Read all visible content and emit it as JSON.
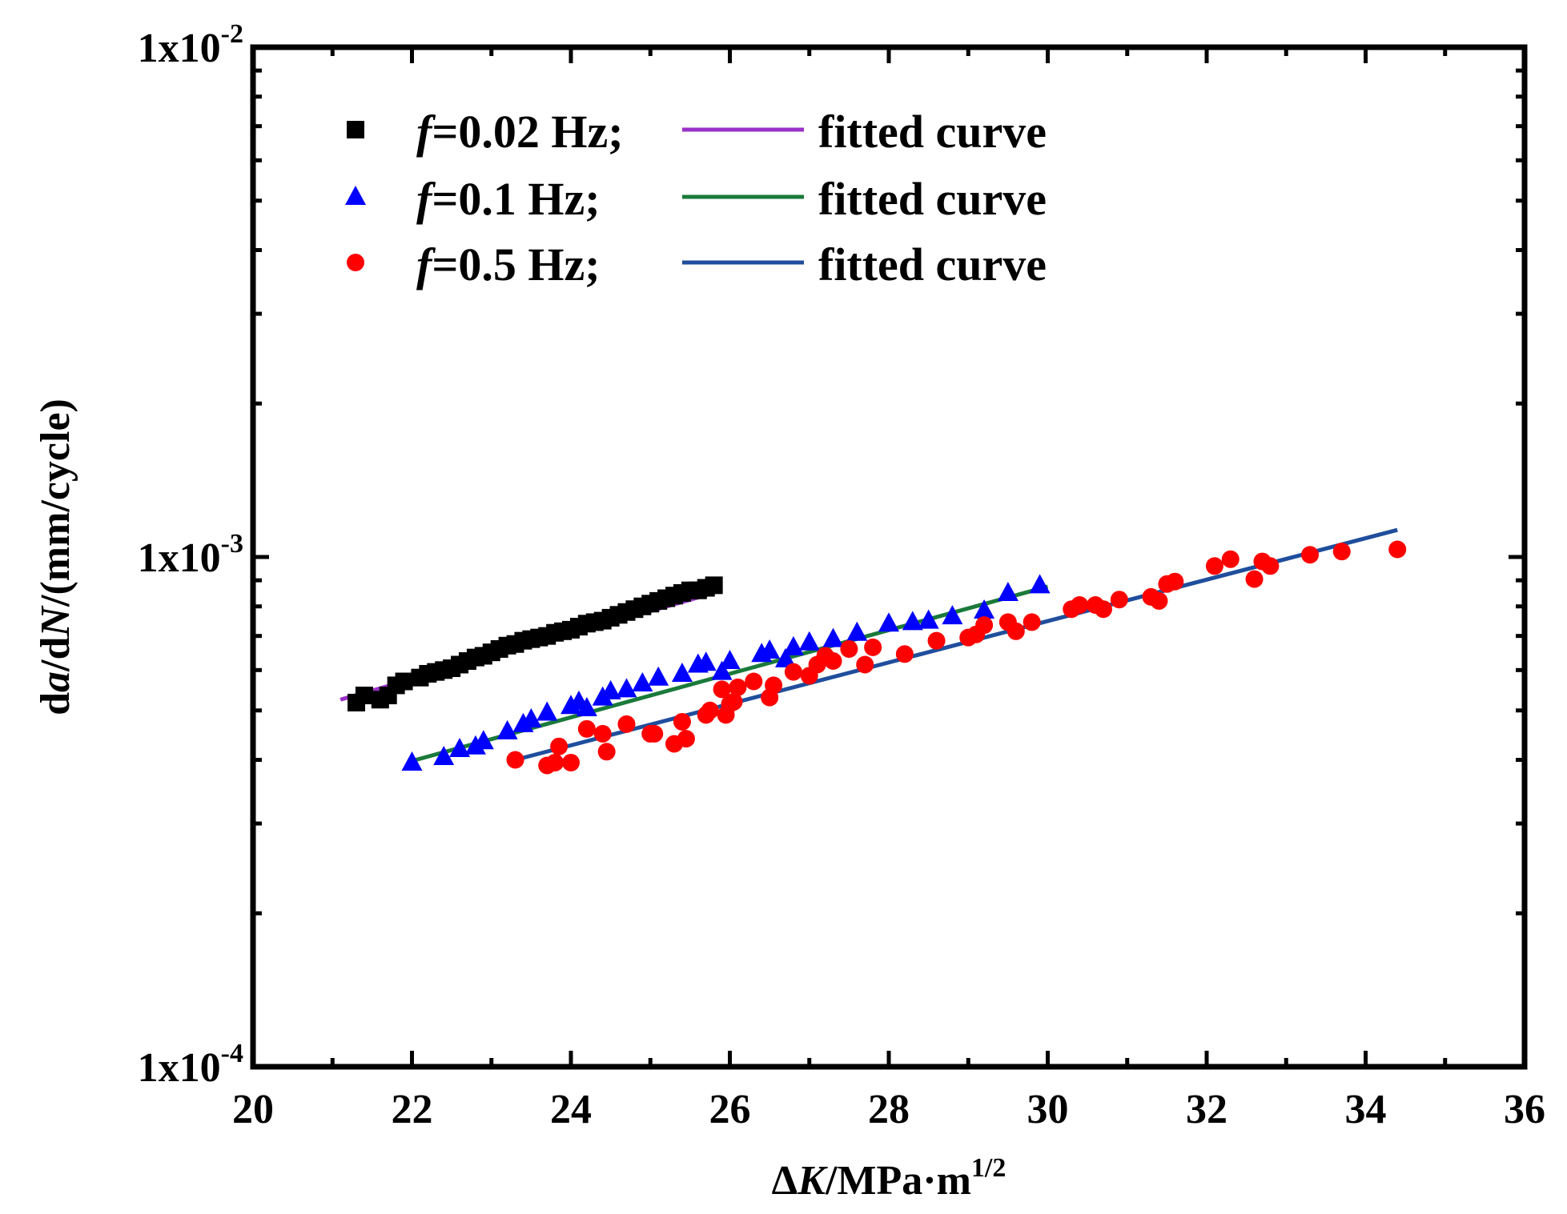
{
  "chart_data": {
    "type": "scatter",
    "x_scale": "linear",
    "y_scale": "log",
    "xlim": [
      20,
      36
    ],
    "ylim": [
      0.0001,
      0.01
    ],
    "x_ticks": [
      {
        "value": 20,
        "label": "20"
      },
      {
        "value": 22,
        "label": "22"
      },
      {
        "value": 24,
        "label": "24"
      },
      {
        "value": 26,
        "label": "26"
      },
      {
        "value": 28,
        "label": "28"
      },
      {
        "value": 30,
        "label": "30"
      },
      {
        "value": 32,
        "label": "32"
      },
      {
        "value": 34,
        "label": "34"
      },
      {
        "value": 36,
        "label": "36"
      }
    ],
    "y_ticks": [
      {
        "value": 0.0001,
        "mantissa": "1x10",
        "exponent": "-4"
      },
      {
        "value": 0.001,
        "mantissa": "1x10",
        "exponent": "-3"
      },
      {
        "value": 0.01,
        "mantissa": "1x10",
        "exponent": "-2"
      }
    ],
    "xlabel": {
      "prefix": "Δ",
      "var": "K",
      "unit": "/MPa·m",
      "sup": "1/2"
    },
    "ylabel": {
      "p1": "d",
      "v1": "a",
      "p2": "/d",
      "v2": "N",
      "p3": "/(mm/cycle)"
    },
    "grid": false,
    "legend_position": "top-left",
    "series": [
      {
        "name": "=0.02 Hz;",
        "name_prefix": "f",
        "marker": "square",
        "color": "#000000",
        "fit_name": "fitted curve",
        "fit_color": "#9b30c8",
        "fit": {
          "x": [
            21.1,
            25.8
          ],
          "y": [
            0.000525,
            0.00085
          ]
        },
        "x": [
          21.3,
          21.4,
          21.6,
          21.7,
          21.8,
          21.9,
          22.1,
          22.2,
          22.3,
          22.4,
          22.5,
          22.6,
          22.7,
          22.8,
          22.9,
          23.0,
          23.1,
          23.2,
          23.3,
          23.4,
          23.5,
          23.6,
          23.7,
          23.8,
          23.9,
          24.0,
          24.1,
          24.2,
          24.3,
          24.4,
          24.5,
          24.6,
          24.7,
          24.8,
          24.9,
          25.0,
          25.1,
          25.2,
          25.3,
          25.4,
          25.5,
          25.6,
          25.7,
          25.8
        ],
        "y": [
          0.000518,
          0.000535,
          0.000525,
          0.000535,
          0.00056,
          0.00057,
          0.00058,
          0.00059,
          0.000595,
          0.0006,
          0.000605,
          0.000615,
          0.000625,
          0.000635,
          0.00064,
          0.00065,
          0.00066,
          0.00067,
          0.000675,
          0.000685,
          0.00069,
          0.000695,
          0.0007,
          0.00071,
          0.000715,
          0.00072,
          0.00073,
          0.00074,
          0.000745,
          0.00075,
          0.00076,
          0.00077,
          0.00078,
          0.00079,
          0.0008,
          0.00081,
          0.00082,
          0.00083,
          0.00084,
          0.00085,
          0.00086,
          0.00086,
          0.00087,
          0.00088
        ]
      },
      {
        "name": "=0.1 Hz;",
        "name_prefix": "f",
        "marker": "triangle",
        "color": "#0000ff",
        "fit_name": "fitted curve",
        "fit_color": "#1a7a3a",
        "fit": {
          "x": [
            22.0,
            30.0
          ],
          "y": [
            0.000398,
            0.000875
          ]
        },
        "x": [
          22.0,
          22.4,
          22.6,
          22.8,
          22.9,
          23.2,
          23.4,
          23.5,
          23.7,
          24.0,
          24.1,
          24.2,
          24.4,
          24.5,
          24.7,
          24.9,
          25.1,
          25.4,
          25.6,
          25.7,
          25.9,
          26.0,
          26.4,
          26.5,
          26.7,
          26.8,
          27.0,
          27.3,
          27.6,
          28.0,
          28.3,
          28.5,
          28.8,
          29.2,
          29.5,
          29.9
        ],
        "y": [
          0.000395,
          0.000405,
          0.00042,
          0.000425,
          0.000435,
          0.000455,
          0.00047,
          0.00048,
          0.000495,
          0.00051,
          0.00052,
          0.000505,
          0.00053,
          0.000545,
          0.00055,
          0.000565,
          0.00058,
          0.00059,
          0.000615,
          0.00062,
          0.000595,
          0.000625,
          0.000645,
          0.000655,
          0.00063,
          0.000665,
          0.00068,
          0.00069,
          0.00071,
          0.00074,
          0.000745,
          0.00075,
          0.000765,
          0.000785,
          0.00085,
          0.00088
        ]
      },
      {
        "name": "=0.5 Hz;",
        "name_prefix": "f",
        "marker": "circle",
        "color": "#ff0000",
        "fit_name": "fitted curve",
        "fit_color": "#1f4e9c",
        "fit": {
          "x": [
            23.3,
            34.4
          ],
          "y": [
            0.0004,
            0.00113
          ]
        },
        "x": [
          23.3,
          23.7,
          23.8,
          23.85,
          24.0,
          24.2,
          24.4,
          24.45,
          24.7,
          25.0,
          25.05,
          25.3,
          25.4,
          25.45,
          25.7,
          25.75,
          25.9,
          25.95,
          26.0,
          26.05,
          26.1,
          26.3,
          26.5,
          26.55,
          26.8,
          27.0,
          27.1,
          27.2,
          27.3,
          27.5,
          27.7,
          27.8,
          28.2,
          28.6,
          29.0,
          29.1,
          29.2,
          29.5,
          29.6,
          29.8,
          30.3,
          30.4,
          30.6,
          30.7,
          30.9,
          31.3,
          31.4,
          31.5,
          31.6,
          32.1,
          32.3,
          32.6,
          32.7,
          32.8,
          33.3,
          33.7,
          34.4
        ],
        "y": [
          0.0004,
          0.00039,
          0.000395,
          0.000425,
          0.000395,
          0.00046,
          0.00045,
          0.000415,
          0.00047,
          0.00045,
          0.00045,
          0.00043,
          0.000475,
          0.00044,
          0.00049,
          0.0005,
          0.00055,
          0.00049,
          0.000515,
          0.00052,
          0.000555,
          0.00057,
          0.00053,
          0.00056,
          0.000595,
          0.000585,
          0.000615,
          0.00064,
          0.000625,
          0.00066,
          0.000615,
          0.000665,
          0.000645,
          0.000685,
          0.000695,
          0.000705,
          0.000735,
          0.000745,
          0.000715,
          0.000745,
          0.00079,
          0.000805,
          0.000805,
          0.00079,
          0.000825,
          0.000835,
          0.00082,
          0.000885,
          0.000895,
          0.00096,
          0.00099,
          0.000905,
          0.00098,
          0.00096,
          0.00101,
          0.001025,
          0.001035
        ]
      }
    ]
  }
}
